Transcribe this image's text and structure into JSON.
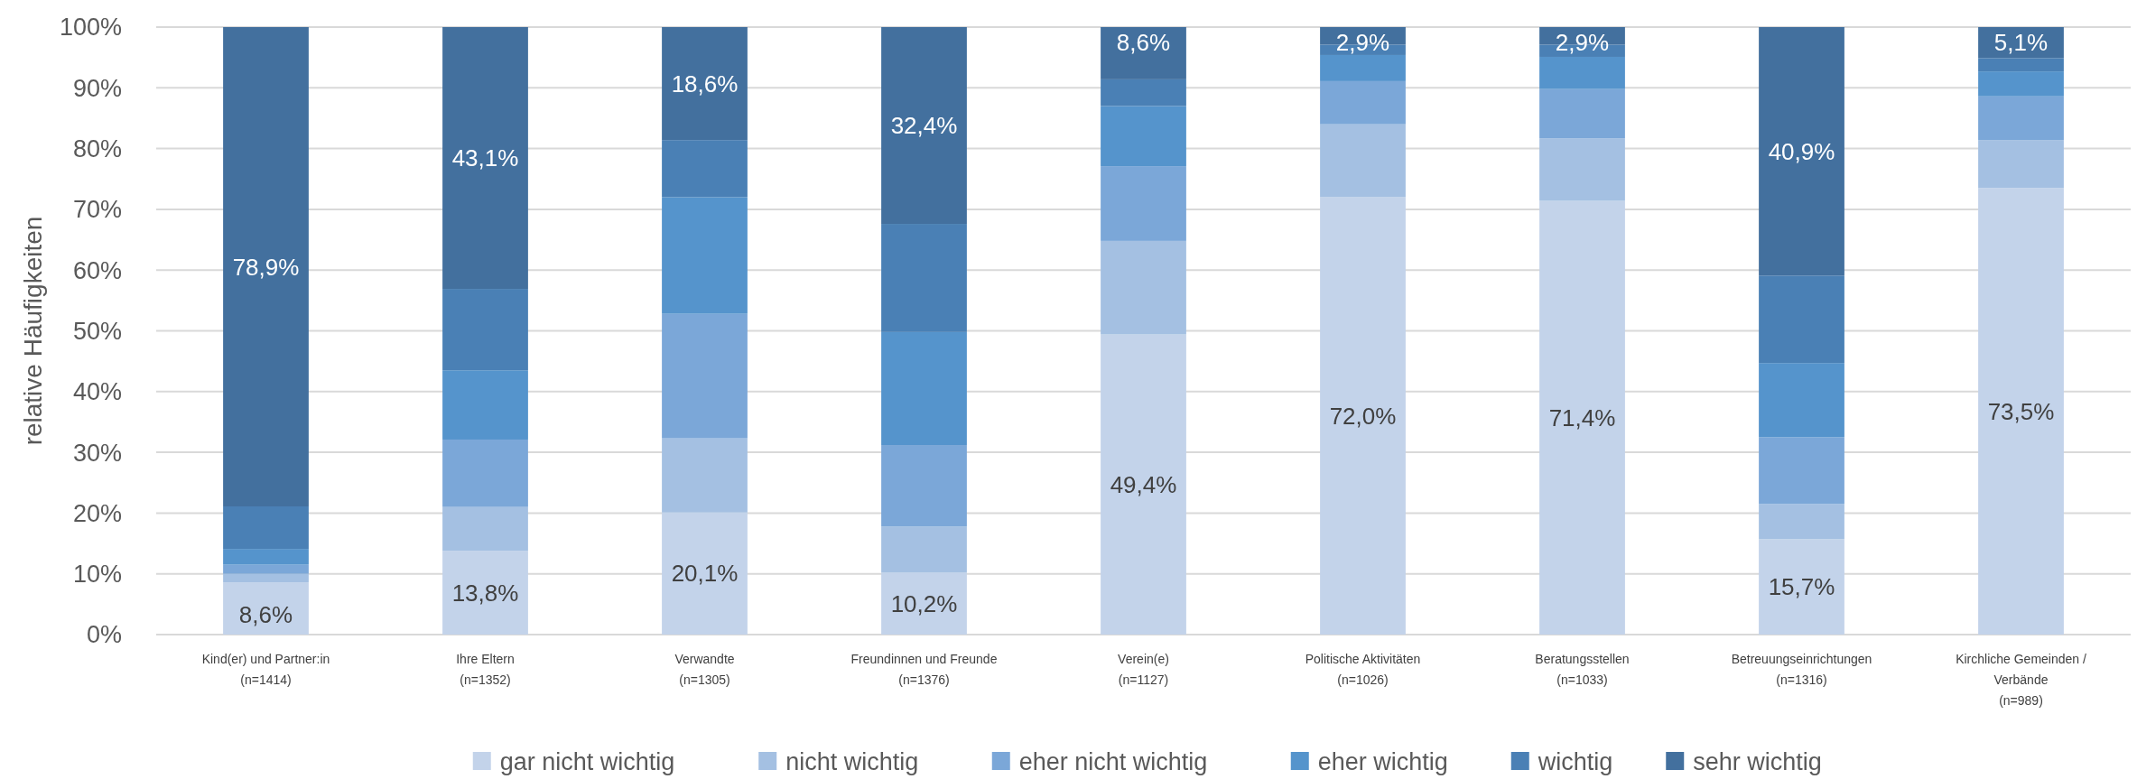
{
  "chart_data": {
    "type": "bar",
    "stacked": true,
    "ylabel": "relative Häufigkeiten",
    "categories": [
      "Kind(er) und Partner:in\n(n=1414)",
      "Ihre Eltern\n(n=1352)",
      "Verwandte\n(n=1305)",
      "Freundinnen und Freunde\n(n=1376)",
      "Verein(e)\n(n=1127)",
      "Politische Aktivitäten\n(n=1026)",
      "Beratungsstellen\n(n=1033)",
      "Betreuungseinrichtungen\n(n=1316)",
      "Kirchliche Gemeinden /\nVerbände\n(n=989)"
    ],
    "series": [
      {
        "name": "gar nicht wichtig",
        "color": "#c3d3ea",
        "values": [
          8.6,
          13.8,
          20.1,
          10.2,
          49.4,
          72.0,
          71.4,
          15.7,
          73.5
        ],
        "value_labels": [
          "8,6%",
          "13,8%",
          "20,1%",
          "10,2%",
          "49,4%",
          "72,0%",
          "71,4%",
          "15,7%",
          "73,5%"
        ]
      },
      {
        "name": "nicht wichtig",
        "color": "#a4c0e2",
        "values": [
          1.4,
          7.2,
          12.2,
          7.6,
          15.4,
          12.0,
          10.3,
          5.8,
          7.9
        ]
      },
      {
        "name": "eher nicht wichtig",
        "color": "#7ba7d8",
        "values": [
          1.5,
          11.1,
          20.5,
          13.4,
          12.3,
          7.1,
          8.1,
          11.0,
          7.2
        ]
      },
      {
        "name": "eher wichtig",
        "color": "#5594cc",
        "values": [
          2.6,
          11.4,
          19.2,
          18.6,
          9.9,
          4.3,
          5.3,
          12.2,
          4.1
        ]
      },
      {
        "name": "wichtig",
        "color": "#4a80b5",
        "values": [
          7.0,
          13.4,
          9.4,
          17.8,
          4.4,
          1.7,
          2.0,
          14.4,
          2.2
        ]
      },
      {
        "name": "sehr wichtig",
        "color": "#43709e",
        "values": [
          78.9,
          43.1,
          18.6,
          32.4,
          8.6,
          2.9,
          2.9,
          40.9,
          5.1
        ],
        "value_labels": [
          "78,9%",
          "43,1%",
          "18,6%",
          "32,4%",
          "8,6%",
          "2,9%",
          "2,9%",
          "40,9%",
          "5,1%"
        ]
      }
    ],
    "ylim": [
      0,
      100
    ],
    "yticks": [
      {
        "value": 0,
        "label": "0%"
      },
      {
        "value": 10,
        "label": "10%"
      },
      {
        "value": 20,
        "label": "20%"
      },
      {
        "value": 30,
        "label": "30%"
      },
      {
        "value": 40,
        "label": "40%"
      },
      {
        "value": 50,
        "label": "50%"
      },
      {
        "value": 60,
        "label": "60%"
      },
      {
        "value": 70,
        "label": "70%"
      },
      {
        "value": 80,
        "label": "80%"
      },
      {
        "value": 90,
        "label": "90%"
      },
      {
        "value": 100,
        "label": "100%"
      }
    ],
    "grid": "y",
    "legend": "bottom"
  }
}
